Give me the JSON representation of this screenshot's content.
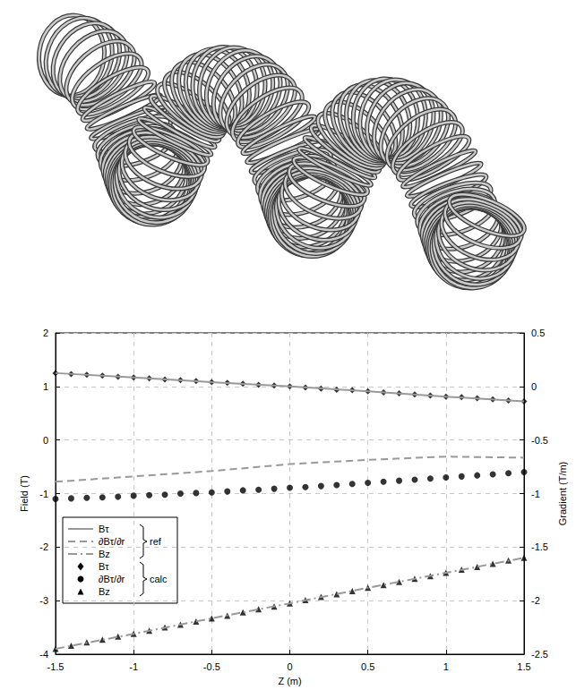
{
  "chart_data": {
    "type": "line",
    "xlabel": "Z (m)",
    "ylabel": "Field (T)",
    "y2label": "Gradient (T/m)",
    "xlim": [
      -1.5,
      1.5
    ],
    "xticks": [
      -1.5,
      -1,
      -0.5,
      0,
      0.5,
      1,
      1.5
    ],
    "ylim": [
      -4,
      2
    ],
    "yticks": [
      -4,
      -3,
      -2,
      -1,
      0,
      1,
      2
    ],
    "y2lim": [
      -2.5,
      0.5
    ],
    "y2ticks": [
      -2.5,
      -2,
      -1.5,
      -1,
      -0.5,
      0,
      0.5
    ],
    "grid": true,
    "legend": "lower left",
    "series": [
      {
        "name": "Bτ",
        "group": "ref",
        "type": "line",
        "line_style": "solid",
        "color": "#999999",
        "x": [
          -1.5,
          -1,
          -0.5,
          0,
          0.5,
          1,
          1.5
        ],
        "values": [
          1.25,
          1.17,
          1.08,
          1.0,
          0.91,
          0.81,
          0.72
        ]
      },
      {
        "name": "∂Bτ/∂r",
        "group": "ref",
        "type": "line",
        "line_style": "dashed",
        "color": "#999999",
        "axis": "y2",
        "x": [
          -1.5,
          -1,
          -0.5,
          0,
          0.5,
          1,
          1.5
        ],
        "values": [
          -0.89,
          -0.84,
          -0.79,
          -0.725,
          -0.685,
          -0.655,
          -0.665
        ]
      },
      {
        "name": "Bz",
        "group": "ref",
        "type": "line",
        "line_style": "dashdot",
        "color": "#999999",
        "x": [
          -1.5,
          -1,
          -0.5,
          0,
          0.5,
          1,
          1.5
        ],
        "values": [
          -3.9,
          -3.62,
          -3.33,
          -3.05,
          -2.76,
          -2.48,
          -2.2
        ]
      },
      {
        "name": "Bτ",
        "group": "calc",
        "type": "scatter",
        "marker": "diamond",
        "color": "#000000",
        "x": [
          -1.5,
          -1.4,
          -1.3,
          -1.2,
          -1.1,
          -1.0,
          -0.9,
          -0.8,
          -0.7,
          -0.6,
          -0.5,
          -0.4,
          -0.3,
          -0.2,
          -0.1,
          0,
          0.1,
          0.2,
          0.3,
          0.4,
          0.5,
          0.6,
          0.7,
          0.8,
          0.9,
          1.0,
          1.1,
          1.2,
          1.3,
          1.4,
          1.5
        ],
        "values": [
          1.25,
          1.23,
          1.22,
          1.2,
          1.18,
          1.17,
          1.15,
          1.13,
          1.12,
          1.1,
          1.08,
          1.07,
          1.05,
          1.03,
          1.02,
          1.0,
          0.98,
          0.96,
          0.94,
          0.93,
          0.91,
          0.89,
          0.87,
          0.85,
          0.83,
          0.81,
          0.8,
          0.78,
          0.76,
          0.74,
          0.72
        ]
      },
      {
        "name": "∂Bτ/∂r",
        "group": "calc",
        "type": "scatter",
        "marker": "circle",
        "color": "#000000",
        "axis": "y2",
        "x": [
          -1.5,
          -1.4,
          -1.3,
          -1.2,
          -1.1,
          -1.0,
          -0.9,
          -0.8,
          -0.7,
          -0.6,
          -0.5,
          -0.4,
          -0.3,
          -0.2,
          -0.1,
          0,
          0.1,
          0.2,
          0.3,
          0.4,
          0.5,
          0.6,
          0.7,
          0.8,
          0.9,
          1.0,
          1.1,
          1.2,
          1.3,
          1.4,
          1.5
        ],
        "values": [
          -1.05,
          -1.045,
          -1.04,
          -1.035,
          -1.03,
          -1.02,
          -1.015,
          -1.01,
          -1.0,
          -0.995,
          -0.99,
          -0.98,
          -0.97,
          -0.965,
          -0.955,
          -0.945,
          -0.94,
          -0.93,
          -0.92,
          -0.91,
          -0.9,
          -0.89,
          -0.88,
          -0.87,
          -0.86,
          -0.85,
          -0.84,
          -0.83,
          -0.82,
          -0.81,
          -0.8
        ]
      },
      {
        "name": "Bz",
        "group": "calc",
        "type": "scatter",
        "marker": "triangle",
        "color": "#000000",
        "x": [
          -1.5,
          -1.4,
          -1.3,
          -1.2,
          -1.1,
          -1.0,
          -0.9,
          -0.8,
          -0.7,
          -0.6,
          -0.5,
          -0.4,
          -0.3,
          -0.2,
          -0.1,
          0,
          0.1,
          0.2,
          0.3,
          0.4,
          0.5,
          0.6,
          0.7,
          0.8,
          0.9,
          1.0,
          1.1,
          1.2,
          1.3,
          1.4,
          1.5
        ],
        "values": [
          -3.9,
          -3.84,
          -3.78,
          -3.73,
          -3.67,
          -3.62,
          -3.56,
          -3.5,
          -3.45,
          -3.39,
          -3.33,
          -3.28,
          -3.22,
          -3.16,
          -3.11,
          -3.05,
          -2.99,
          -2.93,
          -2.88,
          -2.82,
          -2.76,
          -2.71,
          -2.65,
          -2.59,
          -2.54,
          -2.48,
          -2.42,
          -2.37,
          -2.31,
          -2.25,
          -2.2
        ]
      }
    ]
  }
}
